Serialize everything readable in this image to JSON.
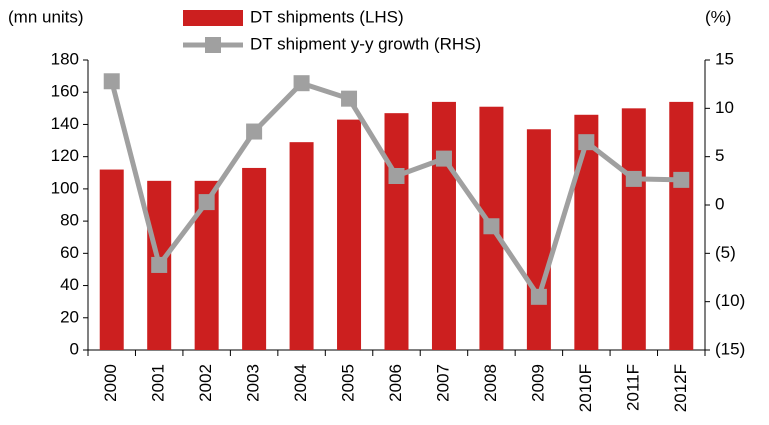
{
  "chart_data": {
    "type": "bar_line",
    "y_label": "(mn units)",
    "y2_label": "(%)",
    "categories": [
      "2000",
      "2001",
      "2002",
      "2003",
      "2004",
      "2005",
      "2006",
      "2007",
      "2008",
      "2009",
      "2010F",
      "2011F",
      "2012F"
    ],
    "series": [
      {
        "name": "DT shipments (LHS)",
        "type": "bar",
        "color": "#cc1f1f",
        "values": [
          112,
          105,
          105,
          113,
          129,
          143,
          147,
          154,
          151,
          137,
          146,
          150,
          154
        ]
      },
      {
        "name": "DT shipment y-y growth (RHS)",
        "type": "line",
        "axis": "y2",
        "color": "#a0a0a0",
        "values": [
          12.8,
          -6.2,
          0.3,
          7.6,
          12.6,
          11,
          3,
          4.8,
          -2.2,
          -9.5,
          6.5,
          2.7,
          2.6
        ]
      }
    ],
    "ylim": [
      0,
      180
    ],
    "yticks": [
      0,
      20,
      40,
      60,
      80,
      100,
      120,
      140,
      160,
      180
    ],
    "y2lim": [
      -15,
      15
    ],
    "y2ticks": [
      {
        "value": -15,
        "label": "(15)"
      },
      {
        "value": -10,
        "label": "(10)"
      },
      {
        "value": -5,
        "label": "(5)"
      },
      0,
      5,
      10,
      15
    ]
  }
}
